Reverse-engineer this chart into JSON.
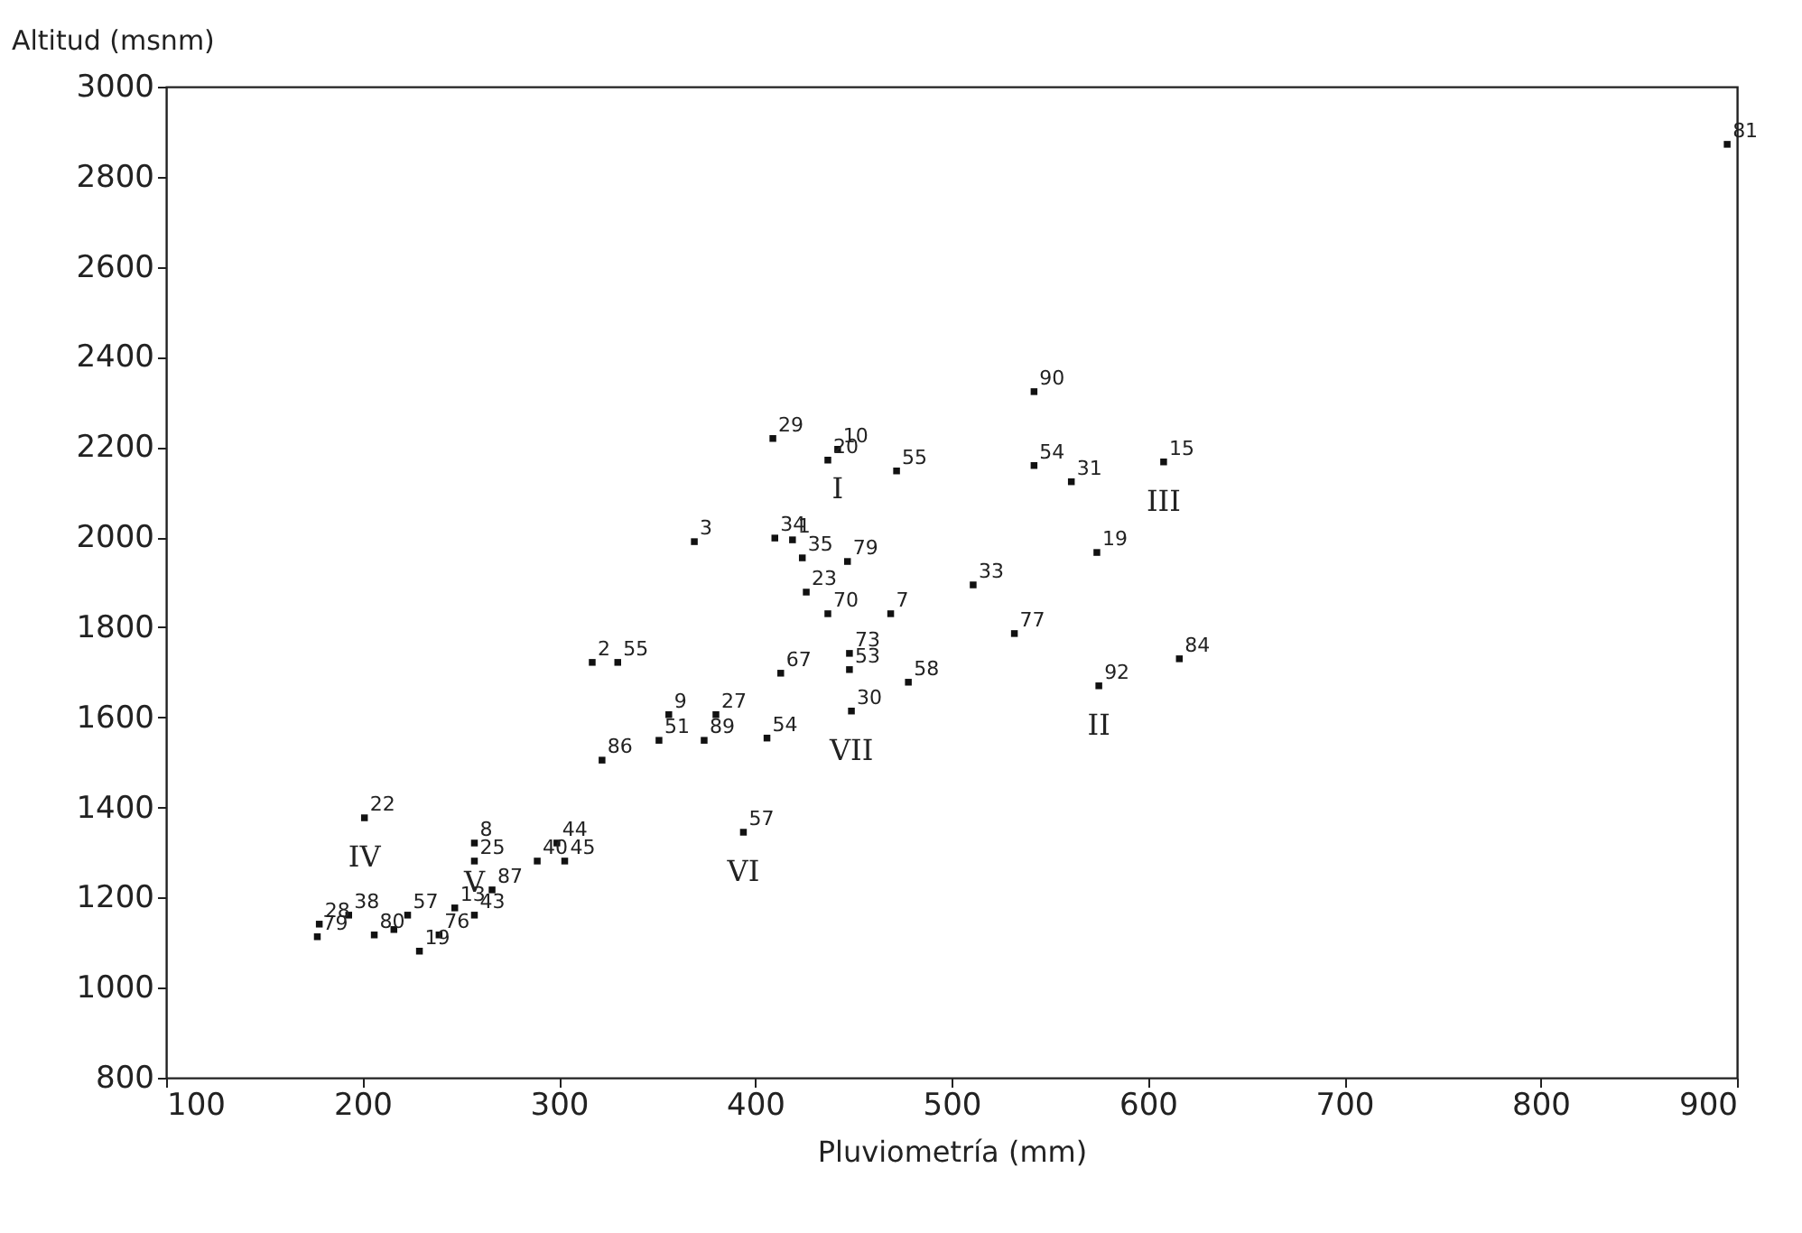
{
  "chart_data": {
    "type": "scatter",
    "xlabel": "Pluviometría (mm)",
    "ylabel": "Altitud (msnm)",
    "xlim": [
      100,
      900
    ],
    "xticks": [
      100,
      200,
      300,
      400,
      500,
      600,
      700,
      800,
      900
    ],
    "ylim": [
      800,
      3000
    ],
    "yticks": [
      800,
      1000,
      1200,
      1400,
      1600,
      1800,
      2000,
      2200,
      2400,
      2600,
      2800,
      3000
    ],
    "grid": false,
    "marker": "square",
    "series": [
      {
        "color": "#111111",
        "x": [
          201,
          193,
          178,
          177,
          206,
          216,
          223,
          229,
          257,
          257,
          289,
          299,
          303,
          247,
          266,
          257,
          239,
          317,
          330,
          356,
          322,
          351,
          374,
          380,
          413,
          448,
          448,
          449,
          478,
          406,
          394,
          409,
          442,
          437,
          472,
          410,
          419,
          424,
          447,
          369,
          426,
          437,
          469,
          542,
          542,
          561,
          608,
          574,
          511,
          532,
          575,
          616,
          895
        ],
        "values": [
          1377,
          1161,
          1141,
          1113,
          1117,
          1129,
          1161,
          1081,
          1321,
          1281,
          1281,
          1321,
          1281,
          1177,
          1217,
          1161,
          1117,
          1722,
          1722,
          1606,
          1505,
          1549,
          1549,
          1606,
          1698,
          1706,
          1742,
          1614,
          1678,
          1554,
          1345,
          2219,
          2195,
          2171,
          2147,
          1998,
          1994,
          1954,
          1946,
          1990,
          1878,
          1830,
          1830,
          2159,
          2323,
          2123,
          2167,
          1966,
          1894,
          1786,
          1670,
          1730,
          2872
        ]
      }
    ],
    "annotations": [
      {
        "text": "22",
        "x": 201,
        "y": 1377
      },
      {
        "text": "38",
        "x": 193,
        "y": 1161
      },
      {
        "text": "28",
        "x": 178,
        "y": 1141
      },
      {
        "text": "79",
        "x": 177,
        "y": 1113
      },
      {
        "text": "80",
        "x": 206,
        "y": 1117
      },
      {
        "text": "57",
        "x": 223,
        "y": 1161
      },
      {
        "text": "19",
        "x": 229,
        "y": 1081
      },
      {
        "text": "8",
        "x": 257,
        "y": 1321
      },
      {
        "text": "25",
        "x": 257,
        "y": 1281
      },
      {
        "text": "40",
        "x": 289,
        "y": 1281
      },
      {
        "text": "44",
        "x": 299,
        "y": 1321
      },
      {
        "text": "45",
        "x": 303,
        "y": 1281
      },
      {
        "text": "13",
        "x": 247,
        "y": 1177
      },
      {
        "text": "87",
        "x": 266,
        "y": 1217
      },
      {
        "text": "43",
        "x": 257,
        "y": 1161
      },
      {
        "text": "76",
        "x": 239,
        "y": 1117
      },
      {
        "text": "2",
        "x": 317,
        "y": 1722
      },
      {
        "text": "55",
        "x": 330,
        "y": 1722
      },
      {
        "text": "9",
        "x": 356,
        "y": 1606
      },
      {
        "text": "86",
        "x": 322,
        "y": 1505
      },
      {
        "text": "51",
        "x": 351,
        "y": 1549
      },
      {
        "text": "89",
        "x": 374,
        "y": 1549
      },
      {
        "text": "27",
        "x": 380,
        "y": 1606
      },
      {
        "text": "67",
        "x": 413,
        "y": 1698
      },
      {
        "text": "53",
        "x": 448,
        "y": 1706
      },
      {
        "text": "73",
        "x": 448,
        "y": 1742
      },
      {
        "text": "30",
        "x": 449,
        "y": 1614
      },
      {
        "text": "58",
        "x": 478,
        "y": 1678
      },
      {
        "text": "54",
        "x": 406,
        "y": 1554
      },
      {
        "text": "57",
        "x": 394,
        "y": 1345
      },
      {
        "text": "29",
        "x": 409,
        "y": 2219
      },
      {
        "text": "10",
        "x": 442,
        "y": 2195
      },
      {
        "text": "20",
        "x": 437,
        "y": 2171
      },
      {
        "text": "55",
        "x": 472,
        "y": 2147
      },
      {
        "text": "34",
        "x": 410,
        "y": 1998
      },
      {
        "text": "1",
        "x": 419,
        "y": 1994
      },
      {
        "text": "35",
        "x": 424,
        "y": 1954
      },
      {
        "text": "79",
        "x": 447,
        "y": 1946
      },
      {
        "text": "3",
        "x": 369,
        "y": 1990
      },
      {
        "text": "23",
        "x": 426,
        "y": 1878
      },
      {
        "text": "70",
        "x": 437,
        "y": 1830
      },
      {
        "text": "7",
        "x": 469,
        "y": 1830
      },
      {
        "text": "54",
        "x": 542,
        "y": 2159
      },
      {
        "text": "90",
        "x": 542,
        "y": 2323
      },
      {
        "text": "31",
        "x": 561,
        "y": 2123
      },
      {
        "text": "15",
        "x": 608,
        "y": 2167
      },
      {
        "text": "19",
        "x": 574,
        "y": 1966
      },
      {
        "text": "33",
        "x": 511,
        "y": 1894
      },
      {
        "text": "77",
        "x": 532,
        "y": 1786
      },
      {
        "text": "92",
        "x": 575,
        "y": 1670
      },
      {
        "text": "84",
        "x": 616,
        "y": 1730
      },
      {
        "text": "81",
        "x": 895,
        "y": 2872
      },
      {
        "text": "I",
        "x": 442,
        "y": 2195
      },
      {
        "text": "II",
        "x": 575,
        "y": 1670
      },
      {
        "text": "III",
        "x": 608,
        "y": 2167
      },
      {
        "text": "IV",
        "x": 201,
        "y": 1377
      },
      {
        "text": "V",
        "x": 257,
        "y": 1321
      },
      {
        "text": "VI",
        "x": 394,
        "y": 1345
      },
      {
        "text": "VII",
        "x": 449,
        "y": 1614
      }
    ]
  }
}
